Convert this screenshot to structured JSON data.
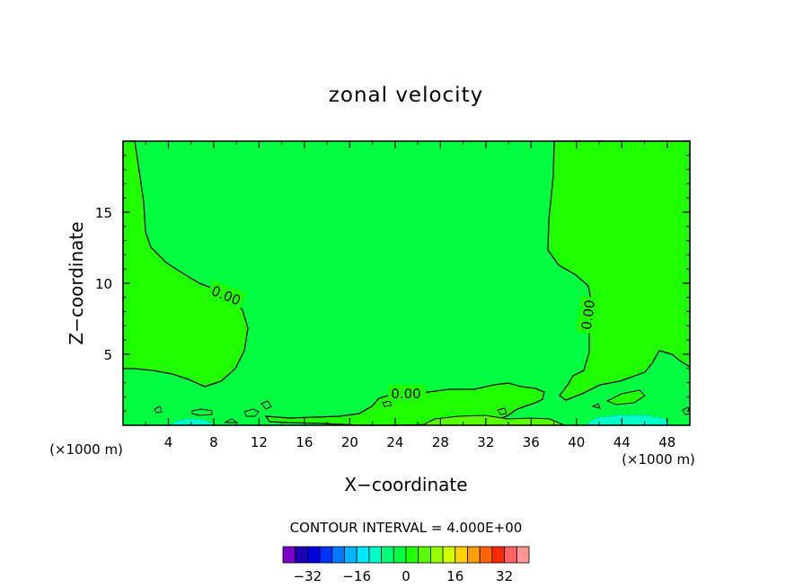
{
  "chart_data": {
    "type": "contour",
    "title": "zonal velocity",
    "xlabel": "X−coordinate",
    "ylabel": "Z−coordinate",
    "x_unit_left": "(×1000 m)",
    "x_unit_right": "(×1000 m)",
    "xlim": [
      0,
      50
    ],
    "ylim": [
      0,
      20
    ],
    "xticks": [
      4,
      8,
      12,
      16,
      20,
      24,
      28,
      32,
      36,
      40,
      44,
      48
    ],
    "xtick_labels": [
      "4",
      "8",
      "12",
      "16",
      "20",
      "24",
      "28",
      "32",
      "36",
      "40",
      "44",
      "48"
    ],
    "yticks": [
      5,
      10,
      15
    ],
    "ytick_labels": [
      "5",
      "10",
      "15"
    ],
    "contour_level_labels": [
      "0.00",
      "0.00",
      "0.00"
    ],
    "contour_interval_text": "CONTOUR INTERVAL = 4.000E+00",
    "background_color": "#00ff40",
    "positive_region_color": "#20ff00",
    "colorbar": {
      "levels": [
        -36,
        -32,
        -28,
        -24,
        -20,
        -16,
        -12,
        -8,
        -4,
        0,
        4,
        8,
        12,
        16,
        20,
        24,
        28,
        32,
        36
      ],
      "tick_values": [
        -32,
        -16,
        0,
        16,
        32
      ],
      "tick_labels": [
        "−32",
        "−16",
        "0",
        "16",
        "32"
      ],
      "colors": [
        "#7a00c8",
        "#1c00b4",
        "#0000dc",
        "#0032ff",
        "#0078ff",
        "#00b4ff",
        "#00e6ff",
        "#00ffc8",
        "#00ff78",
        "#00ff40",
        "#20ff00",
        "#5aff00",
        "#96ff00",
        "#d2ff00",
        "#ffd200",
        "#ffa000",
        "#ff6400",
        "#ff2800",
        "#ff6464",
        "#ff9696"
      ]
    }
  }
}
